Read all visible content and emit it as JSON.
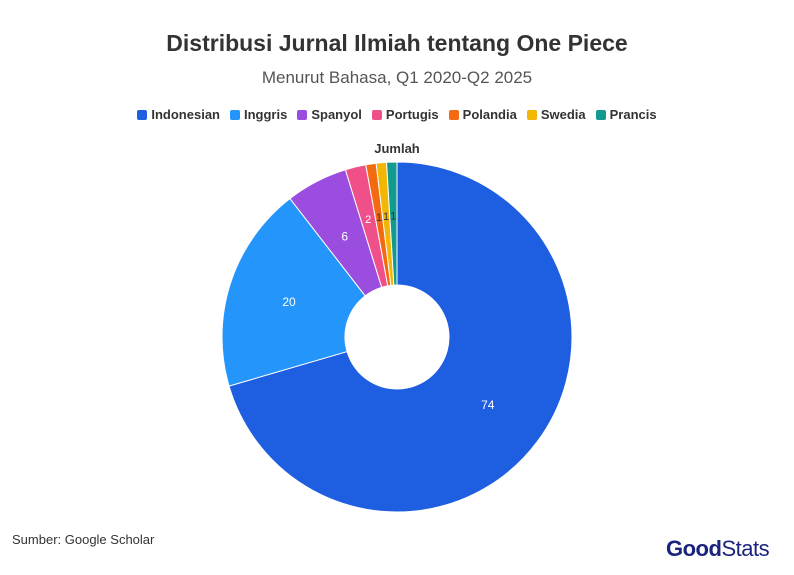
{
  "chart_data": {
    "type": "pie",
    "variant": "donut",
    "title": "Distribusi Jurnal Ilmiah tentang One Piece",
    "subtitle": "Menurut Bahasa, Q1 2020-Q2 2025",
    "series_name": "Jumlah",
    "categories": [
      "Indonesian",
      "Inggris",
      "Spanyol",
      "Portugis",
      "Polandia",
      "Swedia",
      "Prancis"
    ],
    "values": [
      74,
      20,
      6,
      2,
      1,
      1,
      1
    ],
    "colors": [
      "#1e5ee0",
      "#2496fb",
      "#9b4ddf",
      "#f0508a",
      "#f36a10",
      "#f2b705",
      "#119a8f"
    ],
    "legend_position": "top",
    "label_text_colors": [
      "#ffffff",
      "#ffffff",
      "#ffffff",
      "#ffffff",
      "#333333",
      "#333333",
      "#333333"
    ]
  },
  "source": "Sumber: Google Scholar",
  "brand": {
    "part1": "Good",
    "part2": "Stats"
  }
}
